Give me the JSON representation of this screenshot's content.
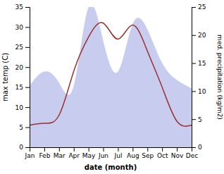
{
  "chart_data": {
    "type": "line",
    "categories": [
      "Jan",
      "Feb",
      "Mar",
      "Apr",
      "May",
      "Jun",
      "Jul",
      "Aug",
      "Sep",
      "Oct",
      "Nov",
      "Dec"
    ],
    "xlabel": "date (month)",
    "ylabel": "max temp (C)",
    "y2label": "med. precipitation (kg/m2)",
    "ylim": [
      0,
      35
    ],
    "yticks": [
      0,
      5,
      10,
      15,
      20,
      25,
      30,
      35
    ],
    "y2lim": [
      0,
      25
    ],
    "y2ticks": [
      0,
      5,
      10,
      15,
      20,
      25
    ],
    "series": [
      {
        "type": "area",
        "axis": "y2",
        "color": "#b0b8e8",
        "values": [
          11.0,
          13.5,
          11.5,
          11.0,
          25.0,
          19.0,
          13.5,
          22.0,
          21.0,
          15.0,
          12.0,
          10.5
        ]
      },
      {
        "type": "line",
        "color": "#9b3030",
        "values": [
          5.5,
          6.0,
          8.0,
          19.0,
          27.5,
          31.0,
          27.0,
          30.5,
          24.0,
          15.0,
          6.5,
          5.5
        ]
      }
    ]
  }
}
